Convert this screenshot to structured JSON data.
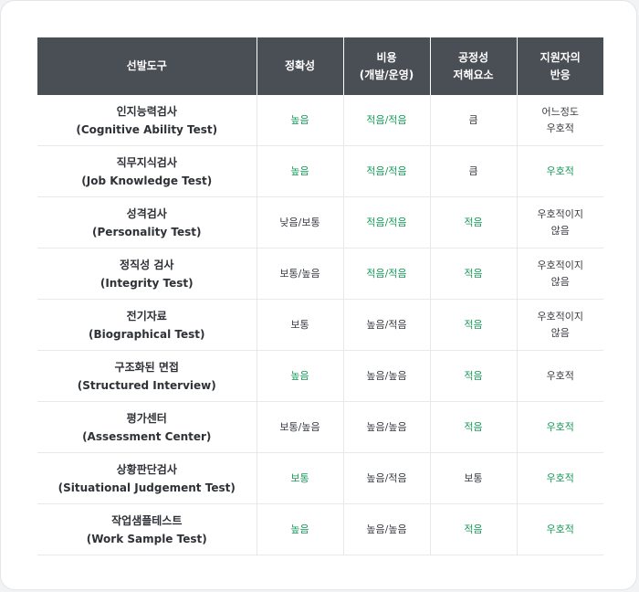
{
  "colors": {
    "header_bg": "#4a4e55",
    "positive": "#1a9a5c",
    "neutral": "#3a3d42"
  },
  "headers": [
    {
      "l1": "선발도구",
      "l2": ""
    },
    {
      "l1": "정확성",
      "l2": ""
    },
    {
      "l1": "비용",
      "l2": "(개발/운영)"
    },
    {
      "l1": "공정성",
      "l2": "저해요소"
    },
    {
      "l1": "지원자의",
      "l2": "반응"
    }
  ],
  "rows": [
    {
      "ko": "인지능력검사",
      "en": "(Cognitive Ability Test)",
      "accuracy": "높음",
      "cost": "적음/적음",
      "fairness": "큼",
      "reaction1": "어느정도",
      "reaction2": "우호적"
    },
    {
      "ko": "직무지식검사",
      "en": "(Job Knowledge Test)",
      "accuracy": "높음",
      "cost": "적음/적음",
      "fairness": "큼",
      "reaction1": "우호적",
      "reaction2": ""
    },
    {
      "ko": "성격검사",
      "en": "(Personality Test)",
      "accuracy": "낮음/보통",
      "cost": "적음/적음",
      "fairness": "적음",
      "reaction1": "우호적이지",
      "reaction2": "않음"
    },
    {
      "ko": "정직성 검사",
      "en": "(Integrity Test)",
      "accuracy": "보통/높음",
      "cost": "적음/적음",
      "fairness": "적음",
      "reaction1": "우호적이지",
      "reaction2": "않음"
    },
    {
      "ko": "전기자료",
      "en": "(Biographical Test)",
      "accuracy": "보통",
      "cost": "높음/적음",
      "fairness": "적음",
      "reaction1": "우호적이지",
      "reaction2": "않음"
    },
    {
      "ko": "구조화된 면접",
      "en": "(Structured Interview)",
      "accuracy": "높음",
      "cost": "높음/높음",
      "fairness": "적음",
      "reaction1": "우호적",
      "reaction2": ""
    },
    {
      "ko": "평가센터",
      "en": "(Assessment Center)",
      "accuracy": "보통/높음",
      "cost": "높음/높음",
      "fairness": "적음",
      "reaction1": "우호적",
      "reaction2": ""
    },
    {
      "ko": "상황판단검사",
      "en": "(Situational Judgement Test)",
      "accuracy": "보통",
      "cost": "높음/적음",
      "fairness": "보통",
      "reaction1": "우호적",
      "reaction2": ""
    },
    {
      "ko": "작업샘플테스트",
      "en": "(Work Sample Test)",
      "accuracy": "높음",
      "cost": "높음/높음",
      "fairness": "적음",
      "reaction1": "우호적",
      "reaction2": ""
    }
  ]
}
